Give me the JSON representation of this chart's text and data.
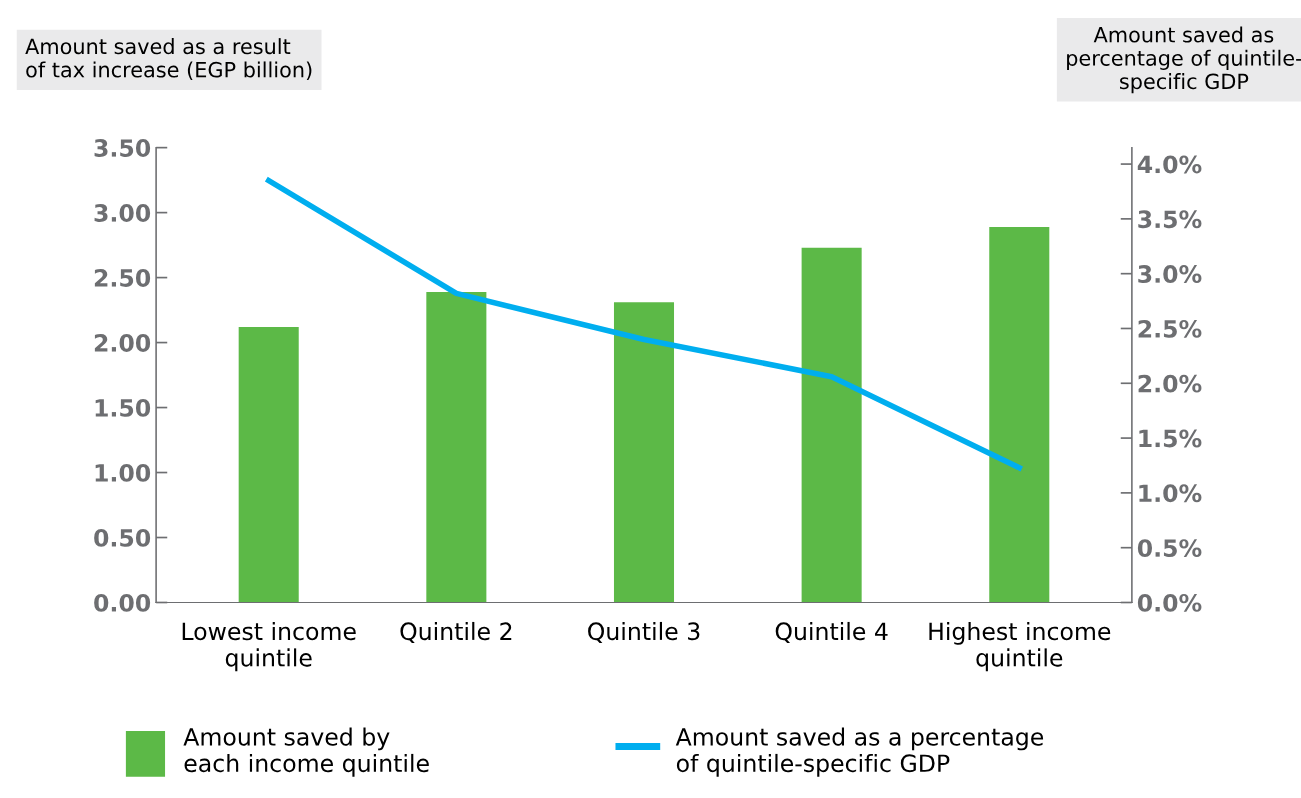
{
  "chart_data": {
    "type": "bar",
    "ylabel": "Amount saved as a result\nof tax increase (EGP billion)",
    "y2label": "Amount saved as\npercentage of quintile-\nspecific GDP",
    "categories": [
      "Lowest income\nquintile",
      "Quintile 2",
      "Quintile 3",
      "Quintile 4",
      "Highest income\nquintile"
    ],
    "series": [
      {
        "name": "Amount saved by\neach income quintile",
        "color": "#5cb947",
        "values": [
          2.12,
          2.39,
          2.31,
          2.73,
          2.89
        ]
      },
      {
        "name": "Amount saved as a percentage\nof quintile-specific GDP",
        "type": "line",
        "axis": "y2",
        "color": "#00aeef",
        "values": [
          3.85,
          2.82,
          2.4,
          2.06,
          1.23
        ]
      }
    ],
    "ylim": [
      0,
      3.5
    ],
    "yticks": [
      {
        "value": 0,
        "label": "0.00"
      },
      {
        "value": 0.5,
        "label": "0.50"
      },
      {
        "value": 1,
        "label": "1.00"
      },
      {
        "value": 1.5,
        "label": "1.50"
      },
      {
        "value": 2,
        "label": "2.00"
      },
      {
        "value": 2.5,
        "label": "2.50"
      },
      {
        "value": 3,
        "label": "3.00"
      },
      {
        "value": 3.5,
        "label": "3.50"
      }
    ],
    "y2lim": [
      0,
      4.15
    ],
    "y2ticks": [
      {
        "value": 0,
        "label": "0.0%"
      },
      {
        "value": 0.5,
        "label": "0.5%"
      },
      {
        "value": 1,
        "label": "1.0%"
      },
      {
        "value": 1.5,
        "label": "1.5%"
      },
      {
        "value": 2,
        "label": "2.0%"
      },
      {
        "value": 2.5,
        "label": "2.5%"
      },
      {
        "value": 3,
        "label": "3.0%"
      },
      {
        "value": 3.5,
        "label": "3.5%"
      },
      {
        "value": 4,
        "label": "4.0%"
      }
    ],
    "grid": false,
    "legend": "bottom",
    "marker": "none",
    "line_style": "solid"
  }
}
